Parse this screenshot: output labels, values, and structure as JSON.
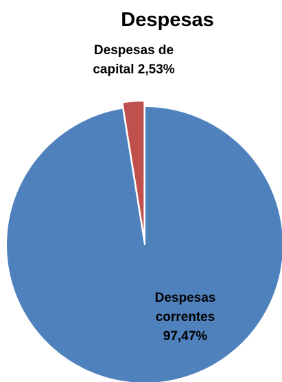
{
  "chart_data": {
    "type": "pie",
    "title": "Despesas",
    "slices": [
      {
        "label_lines": [
          "Despesas",
          "correntes",
          "97,47%"
        ],
        "name": "Despesas correntes",
        "value": 97.47,
        "color": "#4F81BD",
        "exploded": false
      },
      {
        "label_lines": [
          "Despesas de",
          "capital 2,53%"
        ],
        "name": "Despesas de capital",
        "value": 2.53,
        "color": "#C0504D",
        "exploded": true
      }
    ]
  }
}
